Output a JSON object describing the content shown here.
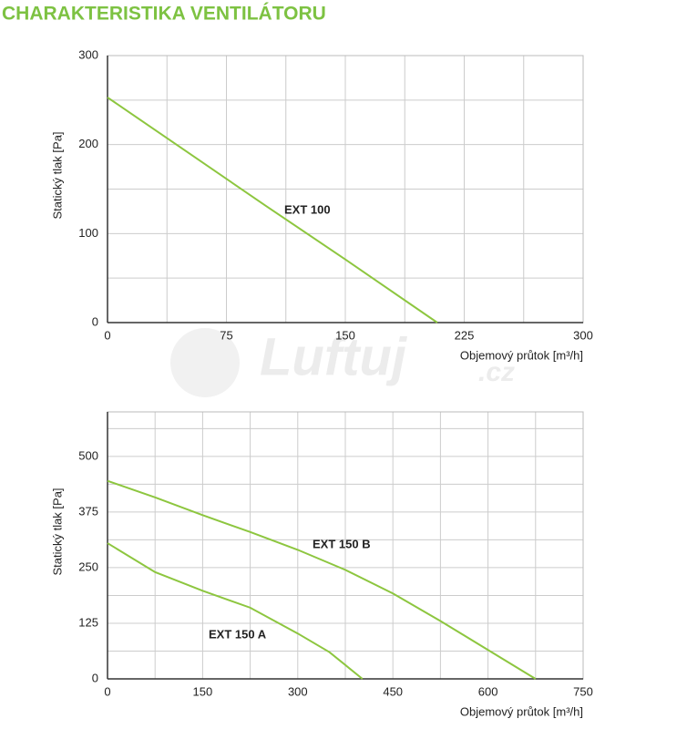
{
  "title": "CHARAKTERISTIKA VENTILÁTORU",
  "watermark": {
    "name": "Luftuj",
    "domain": ".cz"
  },
  "chart_data": [
    {
      "type": "line",
      "xlabel": "Objemový průtok [m³/h]",
      "ylabel": "Statický tlak [Pa]",
      "xlim": [
        0,
        300
      ],
      "ylim": [
        0,
        300
      ],
      "xticks": [
        0,
        75,
        150,
        225,
        300
      ],
      "yticks": [
        0,
        100,
        200,
        300
      ],
      "xminor": [
        37.5,
        112.5,
        187.5,
        262.5
      ],
      "yminor": [
        50,
        150,
        250
      ],
      "grid": true,
      "series": [
        {
          "name": "EXT 100",
          "color": "#8dc63f",
          "x": [
            0,
            50,
            100,
            150,
            208
          ],
          "values": [
            253,
            192,
            131,
            71,
            0
          ]
        }
      ]
    },
    {
      "type": "line",
      "xlabel": "Objemový průtok [m³/h]",
      "ylabel": "Statický tlak [Pa]",
      "xlim": [
        0,
        750
      ],
      "ylim": [
        0,
        600
      ],
      "xticks": [
        0,
        150,
        300,
        450,
        600,
        750
      ],
      "yticks": [
        0,
        125,
        250,
        375,
        500
      ],
      "xminor": [
        75,
        225,
        375,
        525,
        675
      ],
      "yminor": [
        62.5,
        187.5,
        312.5,
        437.5,
        562.5
      ],
      "grid": true,
      "series": [
        {
          "name": "EXT 150 B",
          "color": "#8dc63f",
          "x": [
            0,
            75,
            150,
            225,
            300,
            375,
            450,
            525,
            600,
            675
          ],
          "values": [
            445,
            408,
            368,
            330,
            290,
            245,
            192,
            130,
            65,
            0
          ]
        },
        {
          "name": "EXT 150 A",
          "color": "#8dc63f",
          "x": [
            0,
            75,
            150,
            225,
            300,
            350,
            402
          ],
          "values": [
            305,
            240,
            198,
            160,
            102,
            60,
            0
          ]
        }
      ]
    }
  ]
}
